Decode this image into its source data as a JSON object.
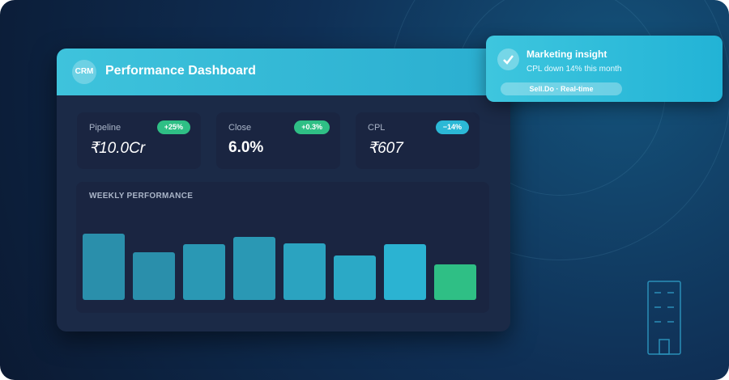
{
  "header": {
    "logo": "CRM",
    "title": "Performance Dashboard"
  },
  "kpis": [
    {
      "label": "Pipeline",
      "badge": "+25%",
      "badge_color": "#2fbf85",
      "value": "₹10.0Cr",
      "italic": true
    },
    {
      "label": "Close",
      "badge": "+0.3%",
      "badge_color": "#2fbf85",
      "value": "6.0%",
      "italic": false
    },
    {
      "label": "CPL",
      "badge": "−14%",
      "badge_color": "#2bb8d6",
      "value": "₹607",
      "italic": true
    }
  ],
  "weekly_performance": {
    "title": "WEEKLY PERFORMANCE",
    "values": [
      82,
      59,
      69,
      78,
      70,
      55,
      69,
      44
    ],
    "colors": [
      "#2a8fab",
      "#2a8fab",
      "#2a98b4",
      "#2a98b4",
      "#2ba3c0",
      "#2ba9c6",
      "#2bb3d2",
      "#2fbf85"
    ]
  },
  "toast": {
    "title": "Marketing insight",
    "message": "CPL down 14% this month",
    "tag": "Sell.Do · Real-time"
  }
}
